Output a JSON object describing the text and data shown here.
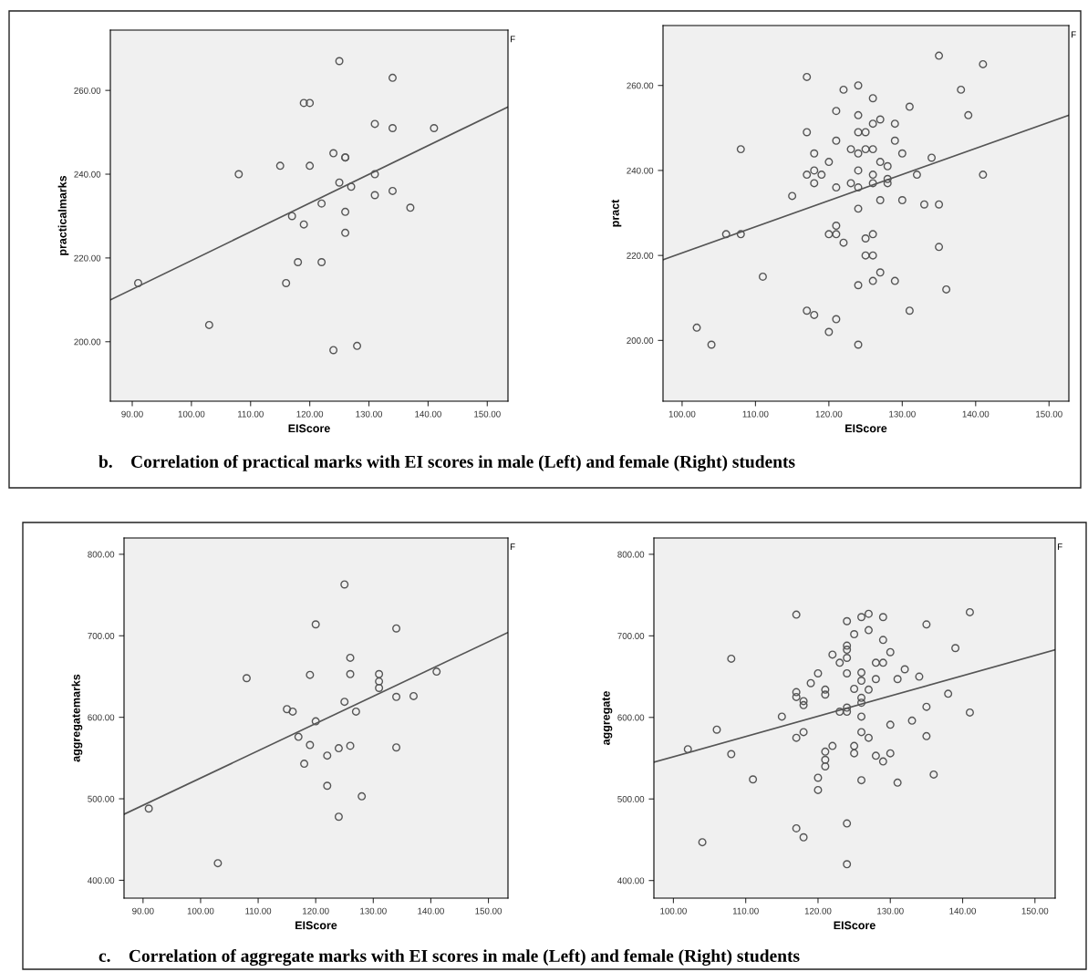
{
  "chart_data": [
    {
      "type": "scatter",
      "xlabel": "EIScore",
      "ylabel": "practicalmarks",
      "xlim": [
        86.3,
        153.5
      ],
      "ylim": [
        185.8,
        274.4
      ],
      "xticks": [
        {
          "value": 90,
          "label": "90.00"
        },
        {
          "value": 100,
          "label": "100.00"
        },
        {
          "value": 110,
          "label": "110.00"
        },
        {
          "value": 120,
          "label": "120.00"
        },
        {
          "value": 130,
          "label": "130.00"
        },
        {
          "value": 140,
          "label": "140.00"
        },
        {
          "value": 150,
          "label": "150.00"
        }
      ],
      "yticks": [
        {
          "value": 200,
          "label": "200.00"
        },
        {
          "value": 220,
          "label": "220.00"
        },
        {
          "value": 240,
          "label": "240.00"
        },
        {
          "value": 260,
          "label": "260.00"
        }
      ],
      "marker": "circle",
      "grid": false,
      "legend": false,
      "annotations": [
        "F",
        "b.    Correlation of practical marks with EI scores in male (Left) and female (Right) students"
      ],
      "series": [
        {
          "color": "#555555",
          "x": [
            91,
            103,
            108,
            115,
            116,
            117,
            118,
            119,
            120,
            119,
            120,
            122,
            122,
            124,
            124,
            125,
            125,
            126,
            126,
            126,
            126,
            127,
            128,
            131,
            131,
            131,
            134,
            134,
            134,
            137,
            141
          ],
          "values": [
            214,
            204,
            240,
            242,
            214,
            230,
            219,
            257,
            257,
            228,
            242,
            233,
            219,
            245,
            198,
            267,
            238,
            244,
            244,
            231,
            226,
            237,
            199,
            252,
            240,
            235,
            263,
            251,
            236,
            232,
            251
          ]
        },
        {
          "type": "line",
          "marker": "none",
          "color": "#555555",
          "x": [
            86.3,
            153.4
          ],
          "values": [
            210,
            256
          ]
        }
      ]
    },
    {
      "type": "scatter",
      "xlabel": "EIScore",
      "ylabel": "pract",
      "xlim": [
        97.4,
        152.7
      ],
      "ylim": [
        185.7,
        274.1
      ],
      "xticks": [
        {
          "value": 100,
          "label": "100.00"
        },
        {
          "value": 110,
          "label": "110.00"
        },
        {
          "value": 120,
          "label": "120.00"
        },
        {
          "value": 130,
          "label": "130.00"
        },
        {
          "value": 140,
          "label": "140.00"
        },
        {
          "value": 150,
          "label": "150.00"
        }
      ],
      "yticks": [
        {
          "value": 200,
          "label": "200.00"
        },
        {
          "value": 220,
          "label": "220.00"
        },
        {
          "value": 240,
          "label": "240.00"
        },
        {
          "value": 260,
          "label": "260.00"
        }
      ],
      "marker": "circle",
      "grid": false,
      "legend": false,
      "annotations": [
        "F"
      ],
      "series": [
        {
          "color": "#555555",
          "x": [
            102,
            104,
            106,
            108,
            108,
            111,
            115,
            117,
            117,
            117,
            117,
            118,
            118,
            118,
            118,
            119,
            120,
            120,
            120,
            121,
            121,
            121,
            121,
            121,
            121,
            122,
            122,
            123,
            123,
            124,
            124,
            124,
            124,
            124,
            124,
            124,
            124,
            124,
            125,
            125,
            125,
            125,
            126,
            126,
            126,
            126,
            126,
            126,
            126,
            126,
            127,
            127,
            127,
            127,
            128,
            128,
            128,
            129,
            129,
            129,
            130,
            130,
            131,
            131,
            132,
            133,
            134,
            135,
            135,
            135,
            136,
            138,
            139,
            141,
            141
          ],
          "values": [
            203,
            199,
            225,
            245,
            225,
            215,
            234,
            262,
            249,
            239,
            207,
            244,
            240,
            237,
            206,
            239,
            242,
            225,
            202,
            254,
            247,
            236,
            227,
            225,
            205,
            259,
            223,
            245,
            237,
            260,
            253,
            249,
            244,
            240,
            236,
            231,
            213,
            199,
            249,
            245,
            224,
            220,
            257,
            251,
            245,
            239,
            237,
            225,
            220,
            214,
            252,
            242,
            233,
            216,
            241,
            238,
            237,
            251,
            247,
            214,
            244,
            233,
            255,
            207,
            239,
            232,
            243,
            267,
            232,
            222,
            212,
            259,
            253,
            265,
            239
          ]
        },
        {
          "type": "line",
          "marker": "none",
          "color": "#555555",
          "x": [
            97.4,
            152.7
          ],
          "values": [
            219,
            253
          ]
        }
      ]
    },
    {
      "type": "scatter",
      "xlabel": "EIScore",
      "ylabel": "aggregatemarks",
      "xlim": [
        86.7,
        153.4
      ],
      "ylim": [
        378.1,
        820
      ],
      "xticks": [
        {
          "value": 90,
          "label": "90.00"
        },
        {
          "value": 100,
          "label": "100.00"
        },
        {
          "value": 110,
          "label": "110.00"
        },
        {
          "value": 120,
          "label": "120.00"
        },
        {
          "value": 130,
          "label": "130.00"
        },
        {
          "value": 140,
          "label": "140.00"
        },
        {
          "value": 150,
          "label": "150.00"
        }
      ],
      "yticks": [
        {
          "value": 400,
          "label": "400.00"
        },
        {
          "value": 500,
          "label": "500.00"
        },
        {
          "value": 600,
          "label": "600.00"
        },
        {
          "value": 700,
          "label": "700.00"
        },
        {
          "value": 800,
          "label": "800.00"
        }
      ],
      "marker": "circle",
      "grid": false,
      "legend": false,
      "annotations": [
        "F",
        "c.    Correlation of aggregate marks with EI scores in male (Left) and female (Right) students"
      ],
      "series": [
        {
          "color": "#555555",
          "x": [
            91,
            103,
            108,
            115,
            116,
            117,
            118,
            119,
            119,
            120,
            120,
            122,
            122,
            124,
            124,
            125,
            125,
            126,
            126,
            126,
            127,
            128,
            131,
            131,
            131,
            134,
            134,
            134,
            137,
            141
          ],
          "values": [
            488,
            421,
            648,
            610,
            607,
            576,
            543,
            652,
            566,
            714,
            595,
            553,
            516,
            562,
            478,
            763,
            619,
            673,
            653,
            565,
            607,
            503,
            653,
            644,
            636,
            709,
            625,
            563,
            626,
            656
          ]
        },
        {
          "type": "line",
          "marker": "none",
          "color": "#555555",
          "x": [
            86.7,
            153.4
          ],
          "values": [
            481,
            704
          ]
        }
      ]
    },
    {
      "type": "scatter",
      "xlabel": "EIScore",
      "ylabel": "aggregate",
      "xlim": [
        97.3,
        152.8
      ],
      "ylim": [
        378.4,
        820
      ],
      "xticks": [
        {
          "value": 100,
          "label": "100.00"
        },
        {
          "value": 110,
          "label": "110.00"
        },
        {
          "value": 120,
          "label": "120.00"
        },
        {
          "value": 130,
          "label": "130.00"
        },
        {
          "value": 140,
          "label": "140.00"
        },
        {
          "value": 150,
          "label": "150.00"
        }
      ],
      "yticks": [
        {
          "value": 400,
          "label": "400.00"
        },
        {
          "value": 500,
          "label": "500.00"
        },
        {
          "value": 600,
          "label": "600.00"
        },
        {
          "value": 700,
          "label": "700.00"
        },
        {
          "value": 800,
          "label": "800.00"
        }
      ],
      "marker": "circle",
      "grid": false,
      "legend": false,
      "annotations": [
        "F"
      ],
      "series": [
        {
          "color": "#555555",
          "x": [
            102,
            104,
            106,
            108,
            108,
            111,
            115,
            117,
            117,
            117,
            117,
            117,
            118,
            118,
            118,
            118,
            119,
            120,
            120,
            120,
            121,
            121,
            121,
            121,
            121,
            122,
            122,
            123,
            123,
            124,
            124,
            124,
            124,
            124,
            124,
            124,
            124,
            124,
            125,
            125,
            125,
            125,
            126,
            126,
            126,
            126,
            126,
            126,
            126,
            126,
            127,
            127,
            127,
            127,
            128,
            128,
            128,
            129,
            129,
            129,
            129,
            130,
            130,
            130,
            131,
            131,
            132,
            133,
            134,
            135,
            135,
            135,
            136,
            138,
            139,
            141,
            141
          ],
          "values": [
            561,
            447,
            585,
            672,
            555,
            524,
            601,
            726,
            631,
            625,
            575,
            464,
            620,
            615,
            582,
            453,
            642,
            654,
            526,
            511,
            634,
            628,
            558,
            548,
            540,
            677,
            565,
            667,
            607,
            718,
            688,
            683,
            673,
            654,
            612,
            607,
            470,
            420,
            702,
            635,
            565,
            556,
            723,
            655,
            645,
            624,
            618,
            601,
            582,
            523,
            727,
            707,
            634,
            575,
            667,
            647,
            553,
            723,
            695,
            667,
            546,
            680,
            591,
            556,
            647,
            520,
            659,
            596,
            650,
            714,
            613,
            577,
            530,
            629,
            685,
            729,
            606
          ]
        },
        {
          "type": "line",
          "marker": "none",
          "color": "#555555",
          "x": [
            97.3,
            152.8
          ],
          "values": [
            545,
            683
          ]
        }
      ]
    }
  ]
}
